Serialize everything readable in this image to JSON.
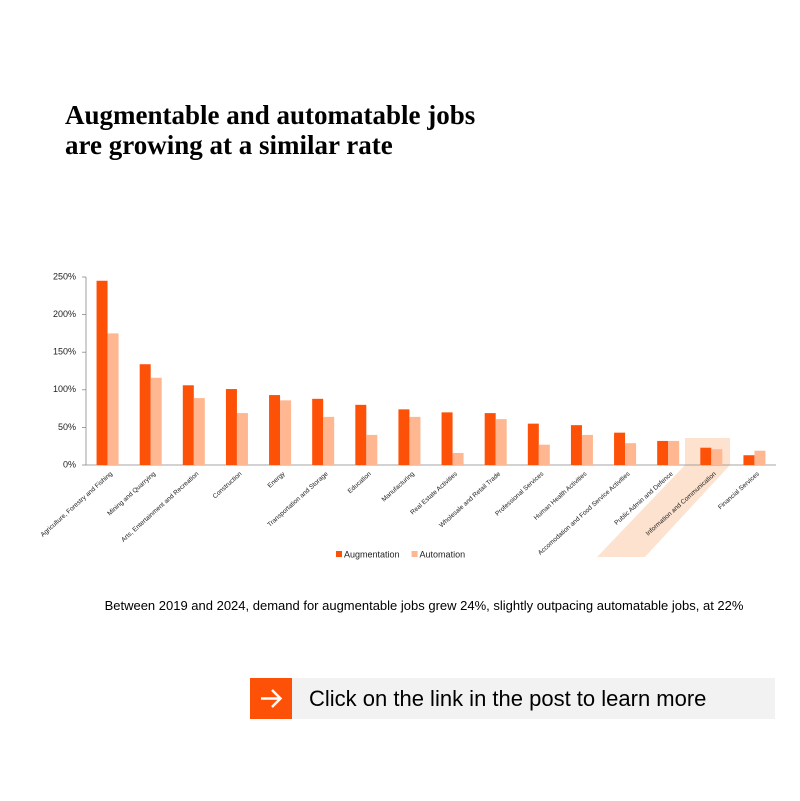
{
  "title": "Augmentable and automatable jobs are growing at a similar rate",
  "chart_data": {
    "type": "bar",
    "categories": [
      "Agriculture, Forestry and Fishing",
      "Mining and Quarrying",
      "Arts, Entertainment and Recreation",
      "Construction",
      "Energy",
      "Transportation and Storage",
      "Education",
      "Manufacturing",
      "Real Estate Activities",
      "Wholesale and Retail Trade",
      "Professional Services",
      "Human Health Activities",
      "Accomodation and Food Service Activities",
      "Public Admin and Defence",
      "Information and Communication",
      "Financial Services"
    ],
    "series": [
      {
        "name": "Augmentation",
        "color": "#fd5108",
        "values": [
          245,
          134,
          106,
          101,
          93,
          88,
          80,
          74,
          70,
          69,
          55,
          53,
          43,
          32,
          23,
          13
        ]
      },
      {
        "name": "Automation",
        "color": "#feb791",
        "values": [
          175,
          116,
          89,
          69,
          86,
          64,
          40,
          64,
          16,
          61,
          27,
          40,
          29,
          32,
          21,
          19
        ]
      }
    ],
    "ylim": [
      0,
      250
    ],
    "yticks": [
      {
        "value": 0,
        "label": "0%"
      },
      {
        "value": 50,
        "label": "50%"
      },
      {
        "value": 100,
        "label": "100%"
      },
      {
        "value": 150,
        "label": "150%"
      },
      {
        "value": 200,
        "label": "200%"
      },
      {
        "value": 250,
        "label": "250%"
      }
    ],
    "grid": false,
    "legend": "bottom"
  },
  "caption": "Between 2019 and 2024, demand for augmentable jobs grew 24%, slightly outpacing automatable jobs, at 22%",
  "cta": "Click on the link in the post to learn more"
}
